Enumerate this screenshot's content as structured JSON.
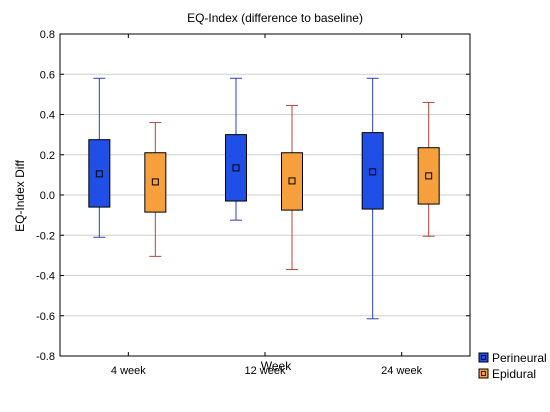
{
  "chart_data": {
    "type": "box",
    "title": "EQ-Index (difference to baseline)",
    "xlabel": "Week",
    "ylabel": "EQ-Index Diff",
    "categories": [
      "4 week",
      "12 week",
      "24 week"
    ],
    "ylim": [
      -0.8,
      0.8
    ],
    "yticks": [
      "0.8",
      "0.6",
      "0.4",
      "0.2",
      "0.0",
      "-0.2",
      "-0.4",
      "-0.6",
      "-0.8"
    ],
    "grid": true,
    "legend_position": "bottom-right",
    "series": [
      {
        "name": "Perineural",
        "color": "#1f4fe6",
        "stats": [
          {
            "min": -0.21,
            "q1": -0.06,
            "median": 0.105,
            "q3": 0.275,
            "max": 0.58
          },
          {
            "min": -0.125,
            "q1": -0.03,
            "median": 0.135,
            "q3": 0.3,
            "max": 0.58
          },
          {
            "min": -0.615,
            "q1": -0.07,
            "median": 0.115,
            "q3": 0.31,
            "max": 0.58
          }
        ]
      },
      {
        "name": "Epidural",
        "color": "#f5a03c",
        "stats": [
          {
            "min": -0.305,
            "q1": -0.085,
            "median": 0.065,
            "q3": 0.21,
            "max": 0.36
          },
          {
            "min": -0.37,
            "q1": -0.075,
            "median": 0.07,
            "q3": 0.21,
            "max": 0.445
          },
          {
            "min": -0.205,
            "q1": -0.045,
            "median": 0.095,
            "q3": 0.235,
            "max": 0.46
          }
        ]
      }
    ]
  }
}
